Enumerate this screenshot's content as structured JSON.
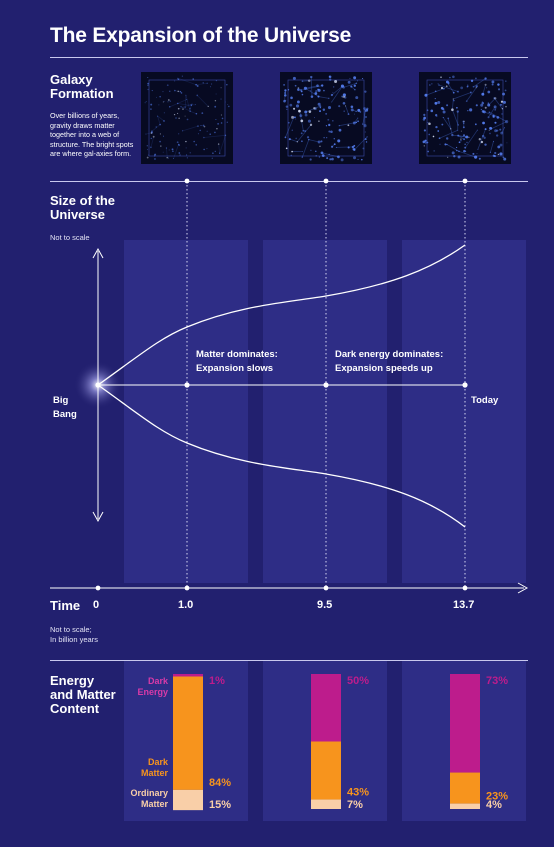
{
  "title": "The Expansion of the Universe",
  "galaxy": {
    "heading": "Galaxy Formation",
    "description": "Over billions of years, gravity draws matter together into a web of structure. The bright spots are where gal-axies form."
  },
  "size": {
    "heading": "Size of the Universe",
    "note": "Not to scale",
    "big_bang": "Big Bang",
    "today": "Today",
    "matter_ann": [
      "Matter dominates:",
      "Expansion slows"
    ],
    "dark_ann": [
      "Dark energy dominates:",
      "Expansion speeds up"
    ]
  },
  "time": {
    "heading": "Time",
    "note": [
      "Not to scale;",
      "In billion years"
    ],
    "ticks": [
      "0",
      "1.0",
      "9.5",
      "13.7"
    ]
  },
  "energy": {
    "heading": "Energy and Matter Content",
    "dark_energy_label": "Dark Energy",
    "dark_matter_label": "Dark Matter",
    "ordinary_label": "Ordinary Matter"
  },
  "colors": {
    "background": "#22206f",
    "column": "#2e2d86",
    "dark_energy": "#bd1c8c",
    "dark_matter": "#f7941d",
    "ordinary": "#f9cfa8"
  },
  "chart_data": {
    "type": "bar",
    "stacked": true,
    "categories": [
      "1.0",
      "9.5",
      "13.7"
    ],
    "series": [
      {
        "name": "Dark Energy",
        "values": [
          1,
          50,
          73
        ]
      },
      {
        "name": "Dark Matter",
        "values": [
          84,
          43,
          23
        ]
      },
      {
        "name": "Ordinary Matter",
        "values": [
          15,
          7,
          4
        ]
      }
    ],
    "units": "%"
  }
}
